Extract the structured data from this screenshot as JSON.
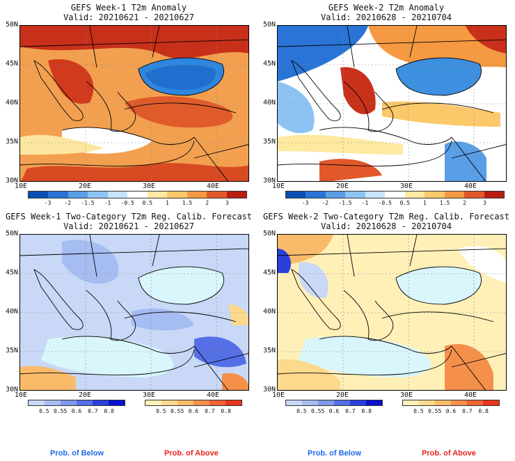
{
  "panels": [
    {
      "title": "GEFS Week-1 T2m Anomaly",
      "valid": "Valid: 20210621 - 20210627"
    },
    {
      "title": "GEFS Week-2 T2m Anomaly",
      "valid": "Valid: 20210628 - 20210704"
    },
    {
      "title": "GEFS Week-1 Two-Category T2m Reg. Calib. Forecast",
      "valid": "Valid: 20210621 - 20210627"
    },
    {
      "title": "GEFS Week-2 Two-Category T2m Reg. Calib. Forecast",
      "valid": "Valid: 20210628 - 20210704"
    }
  ],
  "lat_labels": [
    "50N",
    "45N",
    "40N",
    "35N",
    "30N"
  ],
  "lon_labels": [
    "10E",
    "20E",
    "30E",
    "40E"
  ],
  "anomaly_colorbar": {
    "ticks": [
      "-3",
      "-2",
      "-1.5",
      "-1",
      "-0.5",
      "0.5",
      "1",
      "1.5",
      "2",
      "3"
    ],
    "colors": [
      "#0a4fb5",
      "#2a74d6",
      "#5a9ee6",
      "#8cc3f2",
      "#c6e3fa",
      "#ffffff",
      "#fde9a0",
      "#fbc86a",
      "#f59a42",
      "#e2582a",
      "#b81d12"
    ]
  },
  "prob_below_colorbar": {
    "ticks": [
      "0.5",
      "0.55",
      "0.6",
      "0.7",
      "0.8"
    ],
    "colors": [
      "#c8d8f6",
      "#a6bdf2",
      "#7f98ec",
      "#5570e6",
      "#2a3fdc",
      "#0b0fcf"
    ]
  },
  "prob_above_colorbar": {
    "ticks": [
      "0.5",
      "0.55",
      "0.6",
      "0.7",
      "0.8"
    ],
    "colors": [
      "#fff0b8",
      "#fcd98c",
      "#f9bb6a",
      "#f5904b",
      "#f06434",
      "#e8361e"
    ]
  },
  "legend": {
    "below": "Prob. of Below",
    "above": "Prob. of Above",
    "below_color": "#1e6be6",
    "above_color": "#e8231e"
  },
  "colors": {
    "sea": "#d8f6fb",
    "neutral": "#ffffff",
    "black_sea_anom1": "#2f86de",
    "black_sea_anom2": "#3d8fe0"
  }
}
